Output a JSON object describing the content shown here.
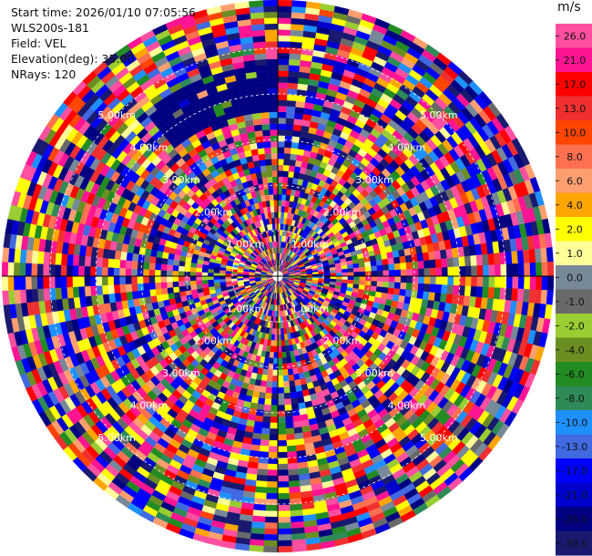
{
  "header": {
    "lines": [
      "Start time: 2026/01/10 07:05:56",
      "WLS200s-181",
      "Field: VEL",
      "Elevation(deg): 35.00",
      "NRays: 120"
    ]
  },
  "chart_data": {
    "type": "heatmap",
    "projection": "polar-ppi",
    "field": "VEL",
    "n_rays": 120,
    "elevation_deg": 35.0,
    "range_rings_km": [
      "1.00km",
      "2.00km",
      "3.00km",
      "4.00km",
      "5.00km"
    ],
    "colorbar": {
      "unit": "m/s",
      "ticks": [
        "26.0",
        "21.0",
        "17.0",
        "13.0",
        "10.0",
        "8.0",
        "6.0",
        "4.0",
        "2.0",
        "1.0",
        "0.0",
        "-1.0",
        "-2.0",
        "-4.0",
        "-6.0",
        "-8.0",
        "-10.0",
        "-13.0",
        "-17.0",
        "-21.0",
        "-26.0",
        "-30.0"
      ],
      "colors": [
        "#ff4fa0",
        "#ff1493",
        "#ff0000",
        "#f03030",
        "#ff4500",
        "#ff7050",
        "#ff9f70",
        "#ffa500",
        "#ffff00",
        "#ffff99",
        "#778899",
        "#696969",
        "#9acd32",
        "#6b8e23",
        "#228b22",
        "#2e8b57",
        "#1e90ff",
        "#4169e1",
        "#0000ff",
        "#0000cd",
        "#000080",
        "#191970"
      ]
    }
  }
}
